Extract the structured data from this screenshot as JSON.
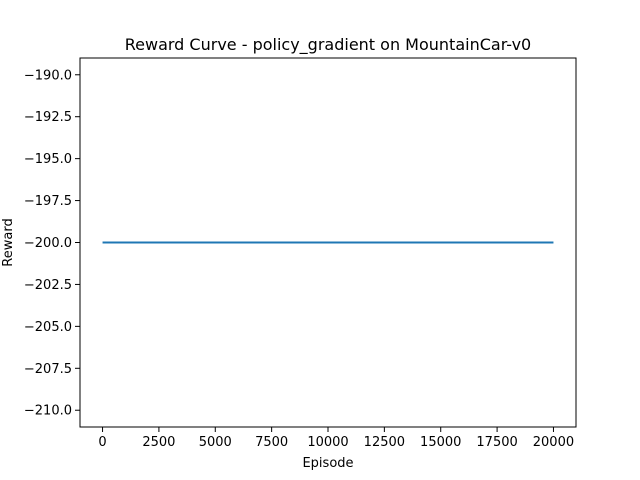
{
  "chart_data": {
    "type": "line",
    "title": "Reward Curve - policy_gradient on MountainCar-v0",
    "xlabel": "Episode",
    "ylabel": "Reward",
    "xlim": [
      -1000,
      21000
    ],
    "ylim": [
      -211.0,
      -189.0
    ],
    "xticks": [
      0,
      2500,
      5000,
      7500,
      10000,
      12500,
      15000,
      17500,
      20000
    ],
    "xtick_labels": [
      "0",
      "2500",
      "5000",
      "7500",
      "10000",
      "12500",
      "15000",
      "17500",
      "20000"
    ],
    "yticks": [
      -190.0,
      -192.5,
      -195.0,
      -197.5,
      -200.0,
      -202.5,
      -205.0,
      -207.5,
      -210.0
    ],
    "ytick_labels": [
      "−190.0",
      "−192.5",
      "−195.0",
      "−197.5",
      "−200.0",
      "−202.5",
      "−205.0",
      "−207.5",
      "−210.0"
    ],
    "grid": false,
    "legend": false,
    "series": [
      {
        "color": "#1f77b4",
        "x": [
          0,
          20000
        ],
        "y": [
          -200.0,
          -200.0
        ]
      }
    ]
  }
}
